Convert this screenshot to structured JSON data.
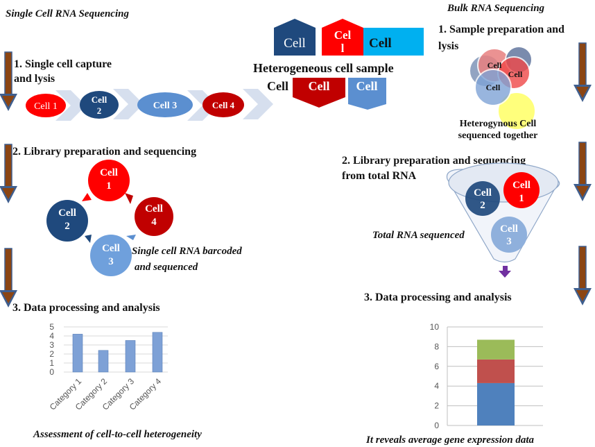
{
  "single_cell": {
    "title": "Single Cell RNA Sequencing",
    "step1": {
      "line1": "1. Single cell capture",
      "line2": "and lysis"
    },
    "capture_cells": [
      "Cell 1",
      "Cell",
      "2",
      "Cell 3",
      "Cell 4"
    ],
    "step2": "2. Library preparation and sequencing",
    "cycle_cells": [
      {
        "label": "Cell",
        "num": "1"
      },
      {
        "label": "Cell",
        "num": "4"
      },
      {
        "label": "Cell",
        "num": "3"
      },
      {
        "label": "Cell",
        "num": "2"
      }
    ],
    "barcode_note": {
      "line1": "Single cell RNA barcoded",
      "line2": "and sequenced"
    },
    "step3": "3. Data processing and analysis",
    "caption": "Assessment of cell-to-cell heterogeneity"
  },
  "sample": {
    "title": "Heterogeneous cell sample",
    "cells": [
      "Cell",
      "Cel",
      "l",
      "Cell",
      "Cell",
      "Cell",
      "Cell"
    ]
  },
  "bulk": {
    "title": "Bulk RNA Sequencing",
    "step1": {
      "line1": "1. Sample preparation and",
      "line2": "lysis"
    },
    "cluster_cells": [
      "Cell",
      "Cell",
      "Cell"
    ],
    "cluster_note": {
      "line1": "Heterogynous Cell",
      "line2": "sequenced together"
    },
    "step2": {
      "line1": "2. Library preparation and sequencing",
      "line2": "from total RNA"
    },
    "funnel_cells": [
      {
        "label": "Cell",
        "num": "2"
      },
      {
        "label": "Cell",
        "num": "1"
      },
      {
        "label": "Cell",
        "num": "3"
      }
    ],
    "funnel_note": "Total RNA sequenced",
    "step3": "3. Data processing and analysis",
    "caption": "It reveals average gene expression data"
  },
  "colors": {
    "arrow": "#8B4513",
    "arrow_border": "#3f5f8f",
    "red": "#ff0000",
    "dark_red": "#c00000",
    "navy": "#1f497d",
    "light_blue": "#5b8fd0",
    "cyan": "#00b0f0"
  },
  "chart_data": [
    {
      "type": "bar",
      "categories": [
        "Category 1",
        "Category 2",
        "Category 3",
        "Category 4"
      ],
      "values": [
        4.2,
        2.4,
        3.5,
        4.4
      ],
      "ylim": [
        0,
        5
      ],
      "yticks": [
        "0",
        "1",
        "2",
        "3",
        "4",
        "5"
      ],
      "grid": true,
      "color": "#7ea1d6"
    },
    {
      "type": "bar",
      "stacked": true,
      "categories": [
        ""
      ],
      "series": [
        {
          "values": [
            4.3
          ],
          "color": "#4f81bd"
        },
        {
          "values": [
            2.4
          ],
          "color": "#c0504d"
        },
        {
          "values": [
            2.0
          ],
          "color": "#9bbb59"
        }
      ],
      "ylim": [
        0,
        10
      ],
      "yticks": [
        "0",
        "2",
        "4",
        "6",
        "8",
        "10"
      ],
      "grid": true
    }
  ]
}
